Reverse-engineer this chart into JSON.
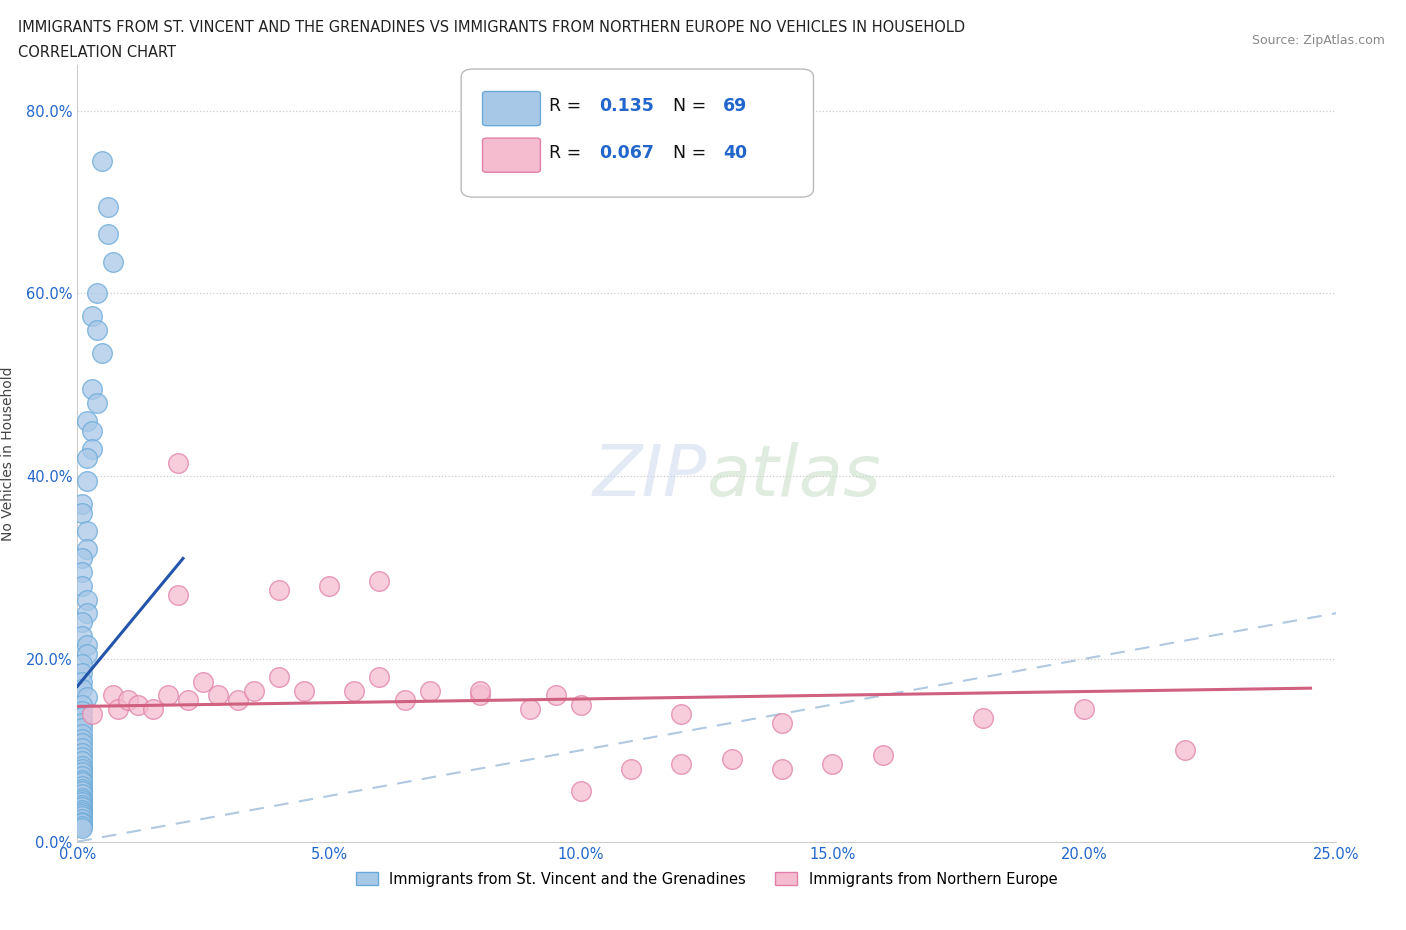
{
  "title_line1": "IMMIGRANTS FROM ST. VINCENT AND THE GRENADINES VS IMMIGRANTS FROM NORTHERN EUROPE NO VEHICLES IN HOUSEHOLD",
  "title_line2": "CORRELATION CHART",
  "source": "Source: ZipAtlas.com",
  "ylabel": "No Vehicles in Household",
  "xlim": [
    0.0,
    0.25
  ],
  "ylim": [
    0.0,
    0.85
  ],
  "xticks": [
    0.0,
    0.05,
    0.1,
    0.15,
    0.2,
    0.25
  ],
  "yticks": [
    0.0,
    0.2,
    0.4,
    0.6,
    0.8
  ],
  "series1_color": "#a8c8e8",
  "series1_edge_color": "#6aaad8",
  "series2_color": "#f5bcd0",
  "series2_edge_color": "#e080a8",
  "series1_label": "Immigrants from St. Vincent and the Grenadines",
  "series2_label": "Immigrants from Northern Europe",
  "R1": 0.135,
  "N1": 69,
  "R2": 0.067,
  "N2": 40,
  "regression_color1": "#2255aa",
  "regression_color2": "#d06080",
  "diagonal_color": "#b0c8e0",
  "legend_color": "#2266cc",
  "sv_x": [
    0.005,
    0.006,
    0.006,
    0.007,
    0.004,
    0.003,
    0.004,
    0.005,
    0.003,
    0.004,
    0.002,
    0.003,
    0.003,
    0.002,
    0.002,
    0.001,
    0.001,
    0.002,
    0.002,
    0.001,
    0.001,
    0.001,
    0.002,
    0.002,
    0.001,
    0.001,
    0.002,
    0.002,
    0.001,
    0.001,
    0.001,
    0.001,
    0.002,
    0.001,
    0.001,
    0.001,
    0.001,
    0.001,
    0.001,
    0.001,
    0.001,
    0.001,
    0.001,
    0.001,
    0.001,
    0.001,
    0.001,
    0.001,
    0.001,
    0.001,
    0.001,
    0.001,
    0.001,
    0.001,
    0.001,
    0.001,
    0.001,
    0.001,
    0.001,
    0.001,
    0.001,
    0.001,
    0.001,
    0.001,
    0.001,
    0.001,
    0.001,
    0.001,
    0.001
  ],
  "sv_y": [
    0.745,
    0.695,
    0.665,
    0.635,
    0.6,
    0.575,
    0.56,
    0.535,
    0.495,
    0.48,
    0.46,
    0.45,
    0.43,
    0.42,
    0.395,
    0.37,
    0.36,
    0.34,
    0.32,
    0.31,
    0.295,
    0.28,
    0.265,
    0.25,
    0.24,
    0.225,
    0.215,
    0.205,
    0.195,
    0.185,
    0.175,
    0.167,
    0.158,
    0.15,
    0.143,
    0.136,
    0.13,
    0.124,
    0.118,
    0.112,
    0.108,
    0.102,
    0.097,
    0.093,
    0.088,
    0.083,
    0.08,
    0.076,
    0.072,
    0.068,
    0.065,
    0.061,
    0.058,
    0.055,
    0.052,
    0.048,
    0.046,
    0.043,
    0.04,
    0.038,
    0.035,
    0.033,
    0.03,
    0.028,
    0.025,
    0.022,
    0.02,
    0.017,
    0.015
  ],
  "ne_x": [
    0.003,
    0.007,
    0.008,
    0.01,
    0.012,
    0.015,
    0.018,
    0.02,
    0.022,
    0.025,
    0.028,
    0.032,
    0.035,
    0.04,
    0.045,
    0.05,
    0.055,
    0.06,
    0.065,
    0.07,
    0.08,
    0.09,
    0.095,
    0.1,
    0.11,
    0.12,
    0.13,
    0.14,
    0.15,
    0.16,
    0.02,
    0.04,
    0.06,
    0.08,
    0.1,
    0.12,
    0.14,
    0.18,
    0.2,
    0.22
  ],
  "ne_y": [
    0.14,
    0.16,
    0.145,
    0.155,
    0.15,
    0.145,
    0.16,
    0.27,
    0.155,
    0.175,
    0.16,
    0.155,
    0.165,
    0.18,
    0.165,
    0.28,
    0.165,
    0.18,
    0.155,
    0.165,
    0.16,
    0.145,
    0.16,
    0.055,
    0.08,
    0.085,
    0.09,
    0.08,
    0.085,
    0.095,
    0.415,
    0.275,
    0.285,
    0.165,
    0.15,
    0.14,
    0.13,
    0.135,
    0.145,
    0.1
  ]
}
